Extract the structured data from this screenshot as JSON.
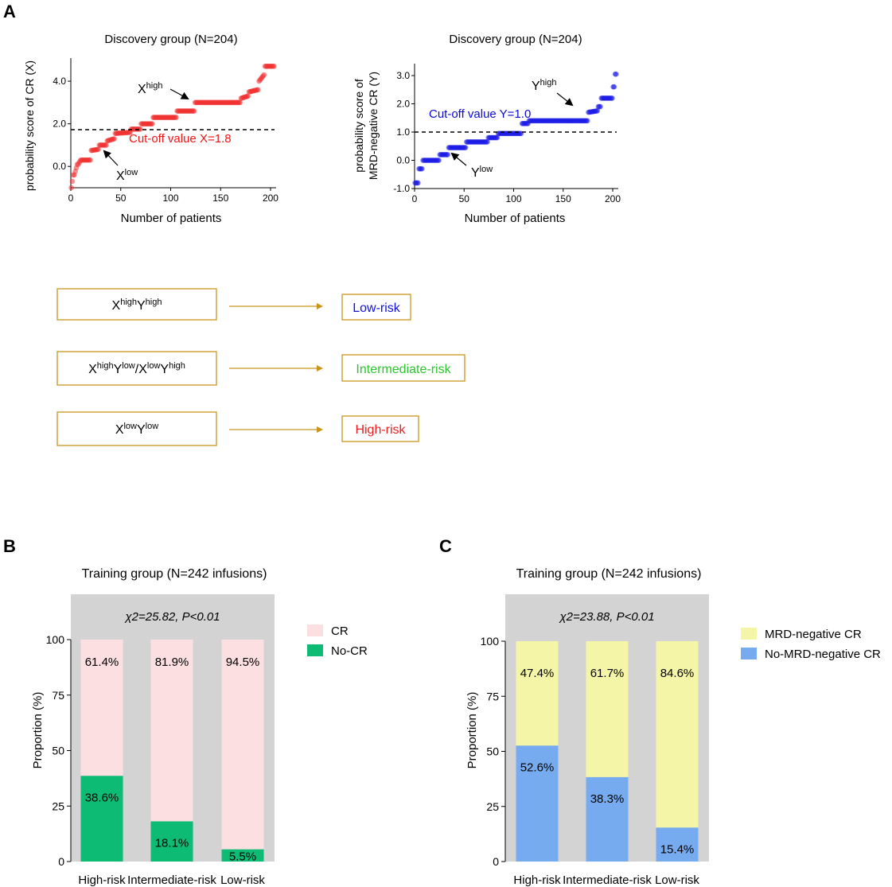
{
  "panels": {
    "a": {
      "letter": "A",
      "chart_left": {
        "title": "Discovery group (N=204)",
        "ylabel": "probability score of CR (X)",
        "xlabel": "Number of patients",
        "xticks": [
          "0",
          "50",
          "100",
          "150",
          "200"
        ],
        "yticks": [
          "0.0",
          "2.0",
          "4.0"
        ],
        "cutoff_label": "Cut-off value X=1.8",
        "annot_high": {
          "base": "X",
          "sup": "high"
        },
        "annot_low": {
          "base": "X",
          "sup": "low"
        }
      },
      "chart_right": {
        "title": "Discovery group (N=204)",
        "ylabel_line1": "probability score of",
        "ylabel_line2": "MRD-negative CR (Y)",
        "xlabel": "Number of patients",
        "xticks": [
          "0",
          "50",
          "100",
          "150",
          "200"
        ],
        "yticks": [
          "-1.0",
          "0.0",
          "1.0",
          "2.0",
          "3.0"
        ],
        "cutoff_label": "Cut-off value Y=1.0",
        "annot_high": {
          "base": "Y",
          "sup": "high"
        },
        "annot_low": {
          "base": "Y",
          "sup": "low"
        }
      }
    },
    "flow": [
      {
        "parts": [
          {
            "base": "X",
            "sup": "high"
          },
          {
            "base": "Y",
            "sup": "high"
          }
        ],
        "result": "Low-risk"
      },
      {
        "parts": [
          {
            "base": "X",
            "sup": "high"
          },
          {
            "base": "Y",
            "sup": "low"
          },
          {
            "base": "/X",
            "sup": "low"
          },
          {
            "base": "Y",
            "sup": "high"
          }
        ],
        "result": "Intermediate-risk"
      },
      {
        "parts": [
          {
            "base": "X",
            "sup": "low"
          },
          {
            "base": "Y",
            "sup": "low"
          }
        ],
        "result": "High-risk"
      }
    ],
    "b": {
      "letter": "B",
      "title": "Training group (N=242 infusions)",
      "stat": "χ2=25.82, P<0.01",
      "ylabel": "Proportion (%)",
      "yticks": [
        "0",
        "25",
        "50",
        "75",
        "100"
      ]
    },
    "c": {
      "letter": "C",
      "title": "Training group (N=242 infusions)",
      "stat": "χ2=23.88, P<0.01",
      "ylabel": "Proportion (%)",
      "yticks": [
        "0",
        "25",
        "50",
        "75",
        "100"
      ]
    }
  },
  "colors": {
    "red_points": "#f03030",
    "blue_points": "#1a1ae6",
    "cutoff_red": "#f01414",
    "cutoff_blue": "#0a0ad2",
    "low_risk": "#1010e0",
    "intermediate_risk": "#2ec42e",
    "high_risk": "#ee1c1c",
    "flow_border": "#c8961e",
    "cr": "#fcdfe1",
    "no_cr": "#0dbb74",
    "mrd_neg_cr": "#f5f5a8",
    "no_mrd_neg_cr": "#76abef",
    "panel_bg": "#d3d3d3"
  },
  "chart_data": [
    {
      "type": "scatter",
      "id": "discovery-x",
      "title": "Discovery group (N=204)",
      "xlabel": "Number of patients",
      "ylabel": "probability score of CR (X)",
      "xlim": [
        0,
        204
      ],
      "ylim": [
        -1.0,
        5.0
      ],
      "cutoff": 1.8,
      "steps": [
        [
          0,
          3,
          -1.0,
          -0.4
        ],
        [
          3,
          7,
          -0.4,
          0.1
        ],
        [
          7,
          10,
          0.1,
          0.28
        ],
        [
          10,
          20,
          0.3,
          0.3
        ],
        [
          20,
          28,
          0.75,
          0.8
        ],
        [
          28,
          36,
          1.0,
          1.0
        ],
        [
          36,
          44,
          1.2,
          1.3
        ],
        [
          44,
          60,
          1.55,
          1.6
        ],
        [
          60,
          70,
          1.75,
          1.75
        ],
        [
          70,
          82,
          2.0,
          2.0
        ],
        [
          82,
          106,
          2.3,
          2.3
        ],
        [
          106,
          124,
          2.6,
          2.6
        ],
        [
          124,
          170,
          3.0,
          3.0
        ],
        [
          170,
          178,
          3.2,
          3.3
        ],
        [
          178,
          188,
          3.5,
          3.6
        ],
        [
          188,
          194,
          4.0,
          4.3
        ],
        [
          194,
          204,
          4.7,
          4.7
        ]
      ]
    },
    {
      "type": "scatter",
      "id": "discovery-y",
      "title": "Discovery group (N=204)",
      "xlabel": "Number of patients",
      "ylabel": "probability score of MRD-negative CR (Y)",
      "xlim": [
        0,
        204
      ],
      "ylim": [
        -1.0,
        3.2
      ],
      "cutoff": 1.0,
      "steps": [
        [
          0,
          4,
          -0.8,
          -0.8
        ],
        [
          4,
          8,
          -0.3,
          -0.3
        ],
        [
          8,
          25,
          0.0,
          0.0
        ],
        [
          25,
          34,
          0.2,
          0.2
        ],
        [
          34,
          52,
          0.45,
          0.45
        ],
        [
          52,
          74,
          0.65,
          0.65
        ],
        [
          74,
          84,
          0.8,
          0.8
        ],
        [
          84,
          108,
          0.95,
          0.95
        ],
        [
          108,
          115,
          1.3,
          1.3
        ],
        [
          115,
          175,
          1.4,
          1.4
        ],
        [
          175,
          185,
          1.7,
          1.75
        ],
        [
          185,
          188,
          1.9,
          1.9
        ],
        [
          188,
          200,
          2.2,
          2.2
        ],
        [
          200,
          202,
          2.6,
          2.6
        ],
        [
          202,
          204,
          3.05,
          3.05
        ]
      ]
    },
    {
      "type": "bar",
      "id": "training-cr",
      "stacked": true,
      "title": "Training group (N=242 infusions)",
      "ylabel": "Proportion (%)",
      "ylim": [
        0,
        100
      ],
      "annotation": "χ2=25.82, P<0.01",
      "categories": [
        "High-risk",
        "Intermediate-risk",
        "Low-risk"
      ],
      "series": [
        {
          "name": "No-CR",
          "values": [
            38.6,
            18.1,
            5.5
          ],
          "labels": [
            "38.6%",
            "18.1%",
            "5.5%"
          ]
        },
        {
          "name": "CR",
          "values": [
            61.4,
            81.9,
            94.5
          ],
          "labels": [
            "61.4%",
            "81.9%",
            "94.5%"
          ]
        }
      ],
      "legend": [
        "CR",
        "No-CR"
      ]
    },
    {
      "type": "bar",
      "id": "training-mrd",
      "stacked": true,
      "title": "Training group (N=242 infusions)",
      "ylabel": "Proportion (%)",
      "ylim": [
        0,
        100
      ],
      "annotation": "χ2=23.88, P<0.01",
      "categories": [
        "High-risk",
        "Intermediate-risk",
        "Low-risk"
      ],
      "series": [
        {
          "name": "No-MRD-negative CR",
          "values": [
            52.6,
            38.3,
            15.4
          ],
          "labels": [
            "52.6%",
            "38.3%",
            "15.4%"
          ]
        },
        {
          "name": "MRD-negative CR",
          "values": [
            47.4,
            61.7,
            84.6
          ],
          "labels": [
            "47.4%",
            "61.7%",
            "84.6%"
          ]
        }
      ],
      "legend": [
        "MRD-negative CR",
        "No-MRD-negative CR"
      ]
    }
  ]
}
